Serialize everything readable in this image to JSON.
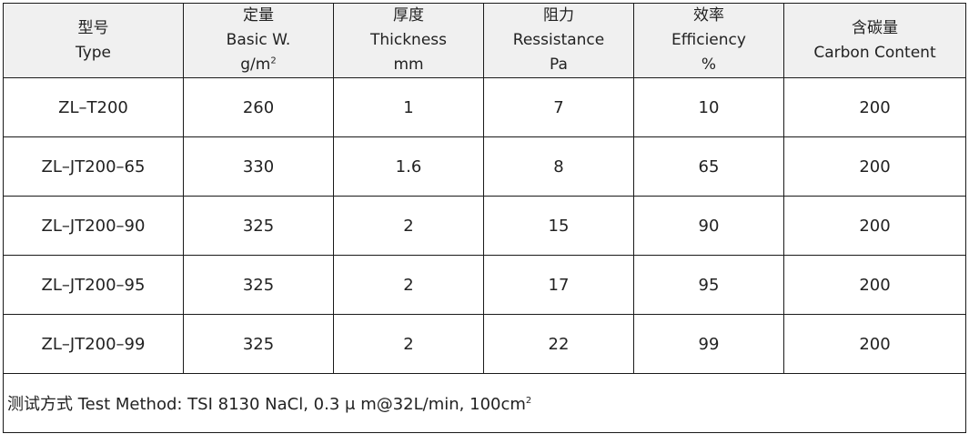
{
  "headers": [
    {
      "zh": "型号",
      "en": "Type",
      "unit": "",
      "unit_sup": ""
    },
    {
      "zh": "定量",
      "en": "Basic W.",
      "unit": "g/m",
      "unit_sup": "2"
    },
    {
      "zh": "厚度",
      "en": "Thickness",
      "unit": "mm",
      "unit_sup": ""
    },
    {
      "zh": "阻力",
      "en": "Ressistance",
      "unit": "Pa",
      "unit_sup": ""
    },
    {
      "zh": "效率",
      "en": "Efficiency",
      "unit": "%",
      "unit_sup": ""
    },
    {
      "zh": "含碳量",
      "en": "Carbon Content",
      "unit": "",
      "unit_sup": ""
    }
  ],
  "rows": [
    [
      "ZL–T200",
      "260",
      "1",
      "7",
      "10",
      "200"
    ],
    [
      "ZL–JT200–65",
      "330",
      "1.6",
      "8",
      "65",
      "200"
    ],
    [
      "ZL–JT200–90",
      "325",
      "2",
      "15",
      "90",
      "200"
    ],
    [
      "ZL–JT200–95",
      "325",
      "2",
      "17",
      "95",
      "200"
    ],
    [
      "ZL–JT200–99",
      "325",
      "2",
      "22",
      "99",
      "200"
    ]
  ],
  "note": {
    "text": "测试方式 Test Method: TSI 8130 NaCl, 0.3 μ m@32L/min, 100cm",
    "sup": "2"
  }
}
